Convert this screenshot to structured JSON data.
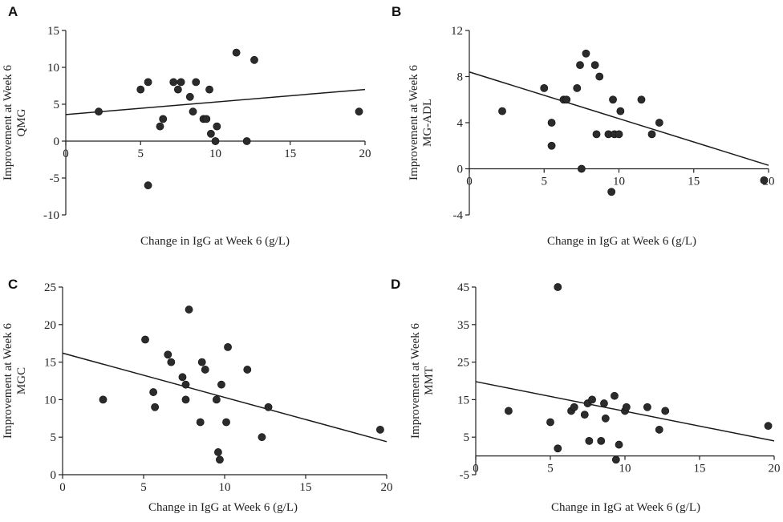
{
  "chart_data": [
    {
      "panel": "A",
      "type": "scatter",
      "xlabel": "Change in IgG at Week 6 (g/L)",
      "ylabel": [
        "Improvement at Week 6",
        "QMG"
      ],
      "xlim": [
        0,
        20
      ],
      "ylim": [
        -10,
        15
      ],
      "xticks": [
        0,
        5,
        10,
        15,
        20
      ],
      "yticks": [
        -10,
        -5,
        0,
        5,
        10,
        15
      ],
      "points": [
        [
          2.2,
          4
        ],
        [
          5,
          7
        ],
        [
          5.5,
          8
        ],
        [
          5.5,
          -6
        ],
        [
          6.3,
          2
        ],
        [
          6.5,
          3
        ],
        [
          7.2,
          8
        ],
        [
          7.5,
          7
        ],
        [
          7.7,
          8
        ],
        [
          8.3,
          6
        ],
        [
          8.5,
          4
        ],
        [
          8.7,
          8
        ],
        [
          9.2,
          3
        ],
        [
          9.4,
          3
        ],
        [
          9.6,
          7
        ],
        [
          9.7,
          1
        ],
        [
          10,
          0
        ],
        [
          10.1,
          2
        ],
        [
          11.4,
          12
        ],
        [
          12.1,
          0
        ],
        [
          12.6,
          11
        ],
        [
          19.6,
          4
        ]
      ],
      "fit": {
        "slope": 0.17,
        "intercept": 3.6
      }
    },
    {
      "panel": "B",
      "type": "scatter",
      "xlabel": "Change in IgG at Week 6 (g/L)",
      "ylabel": [
        "Improvement at Week 6",
        "MG-ADL"
      ],
      "xlim": [
        0,
        20
      ],
      "ylim": [
        -4,
        12
      ],
      "xticks": [
        0,
        5,
        10,
        15,
        20
      ],
      "yticks": [
        -4,
        0,
        4,
        8,
        12
      ],
      "points": [
        [
          2.2,
          5
        ],
        [
          5,
          7
        ],
        [
          5.5,
          4
        ],
        [
          5.5,
          2
        ],
        [
          6.3,
          6
        ],
        [
          6.5,
          6
        ],
        [
          7.2,
          7
        ],
        [
          7.4,
          9
        ],
        [
          7.5,
          0
        ],
        [
          7.8,
          10
        ],
        [
          8.4,
          9
        ],
        [
          8.5,
          3
        ],
        [
          8.7,
          8
        ],
        [
          9.3,
          3
        ],
        [
          9.5,
          -2
        ],
        [
          9.6,
          6
        ],
        [
          9.7,
          3
        ],
        [
          10,
          3
        ],
        [
          10.1,
          5
        ],
        [
          11.5,
          6
        ],
        [
          12.2,
          3
        ],
        [
          12.7,
          4
        ],
        [
          19.7,
          -1
        ]
      ],
      "fit": {
        "slope": -0.405,
        "intercept": 8.4
      }
    },
    {
      "panel": "C",
      "type": "scatter",
      "xlabel": "Change in IgG at Week 6 (g/L)",
      "ylabel": [
        "Improvement at Week 6",
        "MGC"
      ],
      "xlim": [
        0,
        20
      ],
      "ylim": [
        0,
        25
      ],
      "xticks": [
        0,
        5,
        10,
        15,
        20
      ],
      "yticks": [
        0,
        5,
        10,
        15,
        20,
        25
      ],
      "points": [
        [
          2.5,
          10
        ],
        [
          5.1,
          18
        ],
        [
          5.6,
          11
        ],
        [
          5.7,
          9
        ],
        [
          6.5,
          16
        ],
        [
          6.7,
          15
        ],
        [
          7.4,
          13
        ],
        [
          7.6,
          12
        ],
        [
          7.6,
          10
        ],
        [
          7.8,
          22
        ],
        [
          8.5,
          7
        ],
        [
          8.6,
          15
        ],
        [
          8.8,
          14
        ],
        [
          9.5,
          10
        ],
        [
          9.6,
          3
        ],
        [
          9.7,
          2
        ],
        [
          9.8,
          12
        ],
        [
          10.1,
          7
        ],
        [
          10.2,
          17
        ],
        [
          11.4,
          14
        ],
        [
          12.3,
          5
        ],
        [
          12.7,
          9
        ],
        [
          19.6,
          6
        ]
      ],
      "fit": {
        "slope": -0.59,
        "intercept": 16.2
      }
    },
    {
      "panel": "D",
      "type": "scatter",
      "xlabel": "Change in IgG at Week 6 (g/L)",
      "ylabel": [
        "Improvement at Week 6",
        "MMT"
      ],
      "xlim": [
        0,
        20
      ],
      "ylim": [
        -5,
        45
      ],
      "xticks": [
        0,
        5,
        10,
        15,
        20
      ],
      "yticks": [
        -5,
        5,
        15,
        25,
        35,
        45
      ],
      "points": [
        [
          2.2,
          12
        ],
        [
          5,
          9
        ],
        [
          5.5,
          45
        ],
        [
          5.5,
          2
        ],
        [
          6.4,
          12
        ],
        [
          6.6,
          13
        ],
        [
          7.3,
          11
        ],
        [
          7.5,
          14
        ],
        [
          7.6,
          4
        ],
        [
          7.8,
          15
        ],
        [
          8.4,
          4
        ],
        [
          8.6,
          14
        ],
        [
          8.7,
          10
        ],
        [
          9.3,
          16
        ],
        [
          9.4,
          -1
        ],
        [
          9.6,
          3
        ],
        [
          10,
          12
        ],
        [
          10.1,
          13
        ],
        [
          11.5,
          13
        ],
        [
          12.3,
          7
        ],
        [
          12.7,
          12
        ],
        [
          19.6,
          8
        ]
      ],
      "fit": {
        "slope": -0.79,
        "intercept": 19.8
      }
    }
  ]
}
